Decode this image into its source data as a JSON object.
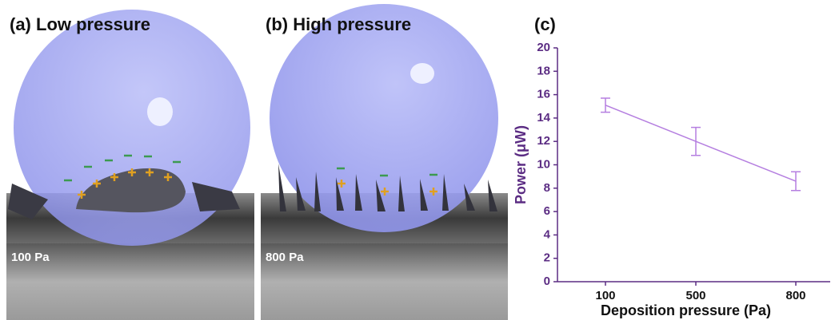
{
  "panels": [
    {
      "label": "(a) Low pressure",
      "scale": "100 Pa"
    },
    {
      "label": "(b) High pressure",
      "scale": "800 Pa"
    }
  ],
  "chart_data": {
    "type": "line",
    "title": "(c)",
    "x_label": "Deposition pressure (Pa)",
    "y_label": "Power (μW)",
    "categories": [
      "100",
      "500",
      "800"
    ],
    "values": [
      15.1,
      12.0,
      8.6
    ],
    "errors": [
      0.6,
      1.2,
      0.8
    ],
    "color": "#b57fe0",
    "axis_color": "#5b2c83",
    "ylim": [
      0,
      20
    ],
    "yticks": [
      0,
      2,
      4,
      6,
      8,
      10,
      12,
      14,
      16,
      18,
      20
    ]
  }
}
